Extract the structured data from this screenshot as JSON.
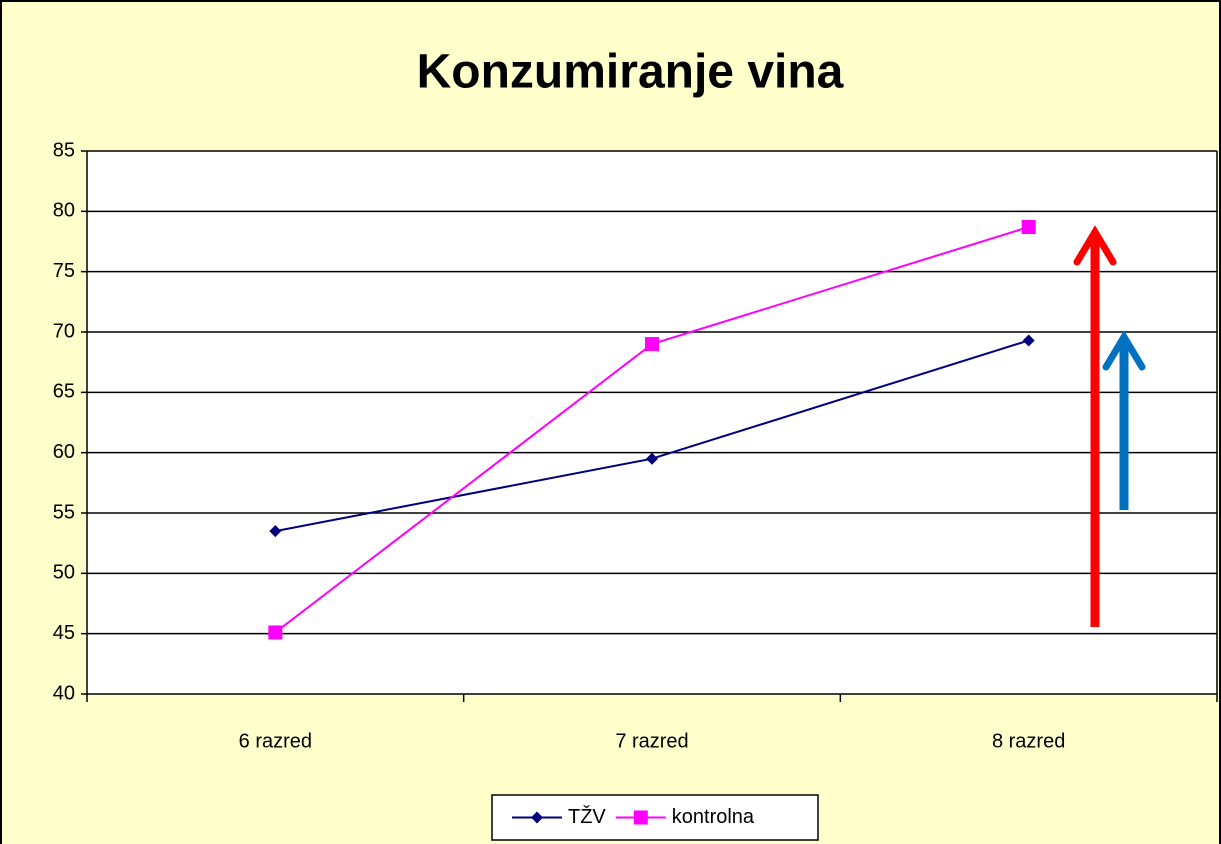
{
  "chart_data": {
    "type": "line",
    "title": "Konzumiranje vina",
    "categories": [
      "6 razred",
      "7 razred",
      "8 razred"
    ],
    "series": [
      {
        "name": "TŽV",
        "color": "#000080",
        "marker": "diamond",
        "values": [
          53.5,
          59.5,
          69.3
        ]
      },
      {
        "name": "kontrolna",
        "color": "#ff00ff",
        "marker": "square",
        "values": [
          45.1,
          69.0,
          78.7
        ]
      }
    ],
    "ylim": [
      40,
      85
    ],
    "yticks": [
      40,
      45,
      50,
      55,
      60,
      65,
      70,
      75,
      80,
      85
    ],
    "grid": true,
    "legend": "bottom"
  }
}
